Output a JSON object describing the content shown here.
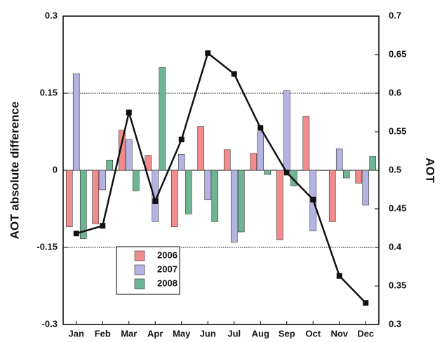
{
  "chart_data": {
    "type": "bar",
    "categories": [
      "Jan",
      "Feb",
      "Mar",
      "Apr",
      "May",
      "Jun",
      "Jul",
      "Aug",
      "Sep",
      "Oct",
      "Nov",
      "Dec"
    ],
    "y_label": "AOT absolute difference",
    "y2_label": "AOT",
    "ylim": [
      -0.3,
      0.3
    ],
    "yticks": [
      -0.3,
      -0.15,
      0,
      0.15,
      0.3
    ],
    "y2lim": [
      0.3,
      0.7
    ],
    "y2ticks": [
      0.3,
      0.35,
      0.4,
      0.45,
      0.5,
      0.55,
      0.6,
      0.65,
      0.7
    ],
    "grid": true,
    "series": [
      {
        "name": "2006",
        "color": "#f28b8b",
        "label_color": "#e02828",
        "values": [
          -0.11,
          -0.104,
          0.078,
          0.029,
          -0.11,
          0.085,
          0.04,
          0.033,
          -0.135,
          0.105,
          -0.1,
          -0.025
        ]
      },
      {
        "name": "2007",
        "color": "#b4b4e2",
        "label_color": "#3a4aa8",
        "values": [
          0.188,
          -0.038,
          0.06,
          -0.1,
          0.031,
          -0.057,
          -0.14,
          0.075,
          0.155,
          -0.118,
          0.042,
          -0.068
        ]
      },
      {
        "name": "2008",
        "color": "#6db593",
        "label_color": "#1f7a3a",
        "values": [
          -0.133,
          0.02,
          -0.04,
          0.2,
          -0.085,
          -0.1,
          -0.12,
          -0.008,
          -0.03,
          0,
          -0.015,
          0.027
        ]
      },
      {
        "type": "line",
        "axis": "y2",
        "color": "#111111",
        "values": [
          0.418,
          0.428,
          0.575,
          0.46,
          0.54,
          0.652,
          0.625,
          0.555,
          0.497,
          0.462,
          0.363,
          0.328
        ]
      }
    ]
  }
}
